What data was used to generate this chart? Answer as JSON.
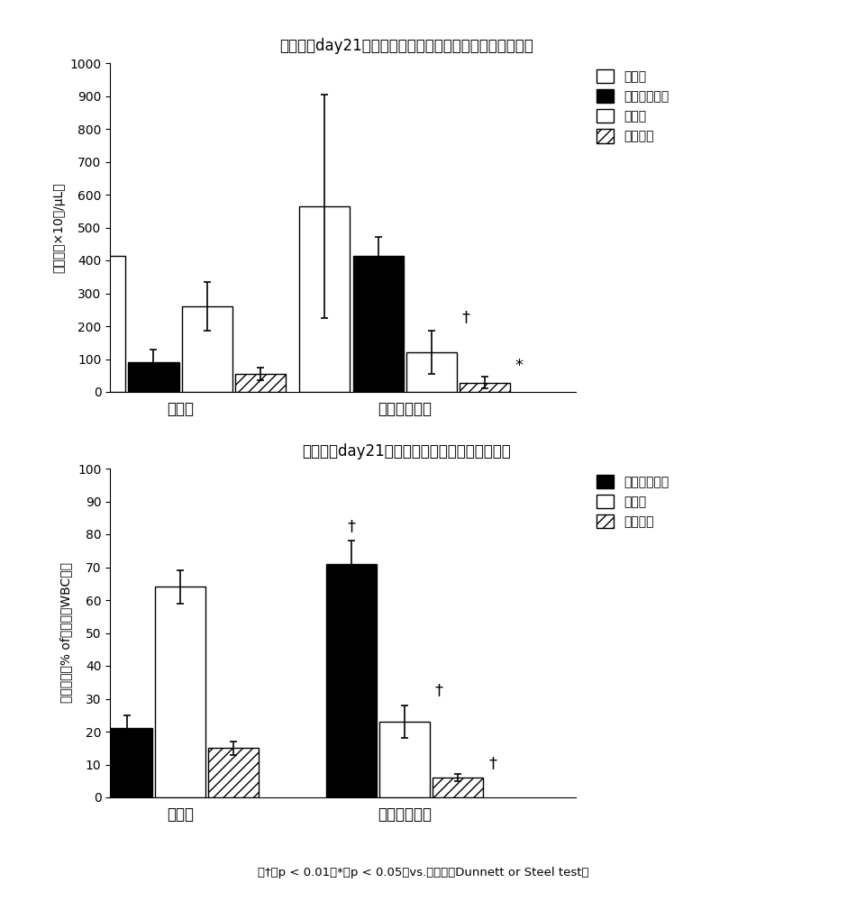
{
  "title1": "解剖时（day21）的血液中的白血球、及白血球组分的数量",
  "title2": "解剖时（day21）的血液中的白血球组分的比例",
  "footer": "（†：p < 0.01，*：p < 0.05，vs.对比组，Dunnett or Steel test）",
  "xlabel_ctrl": "对比组",
  "xlabel_cancer": "癌细胞移植组",
  "chart1": {
    "ylabel": "细胞数（×10个/μL）",
    "ylim": [
      0,
      1000
    ],
    "series": [
      {
        "name": "白血球",
        "control": 415,
        "cancer": 565,
        "hatch": "",
        "facecolor": "white",
        "err_c": 110,
        "err_ca": 340
      },
      {
        "name": "嗜中性粒细胞",
        "control": 90,
        "cancer": 415,
        "hatch": "",
        "facecolor": "black",
        "err_c": 40,
        "err_ca": 55
      },
      {
        "name": "淋巴球",
        "control": 260,
        "cancer": 120,
        "hatch": "",
        "facecolor": "white",
        "err_c": 75,
        "err_ca": 65
      },
      {
        "name": "单核细胞",
        "control": 55,
        "cancer": 28,
        "hatch": "///",
        "facecolor": "white",
        "err_c": 20,
        "err_ca": 18
      }
    ],
    "legend_entries": [
      "白血球",
      "嗜中性粒细胞",
      "淋巴球",
      "单核细胞"
    ]
  },
  "chart2": {
    "ylabel": "细胞比例（% of白血球（WBC））",
    "ylim": [
      0,
      100
    ],
    "series": [
      {
        "name": "嗜中性粒细胞",
        "control": 21,
        "cancer": 71,
        "hatch": "",
        "facecolor": "black",
        "err_c": 4,
        "err_ca": 7
      },
      {
        "name": "淋巴球",
        "control": 64,
        "cancer": 23,
        "hatch": "",
        "facecolor": "white",
        "err_c": 5,
        "err_ca": 5
      },
      {
        "name": "单核细胞",
        "control": 15,
        "cancer": 6,
        "hatch": "///",
        "facecolor": "white",
        "err_c": 2,
        "err_ca": 1
      }
    ],
    "legend_entries": [
      "嗜中性粒细胞",
      "淋巴球",
      "单核细胞"
    ]
  }
}
